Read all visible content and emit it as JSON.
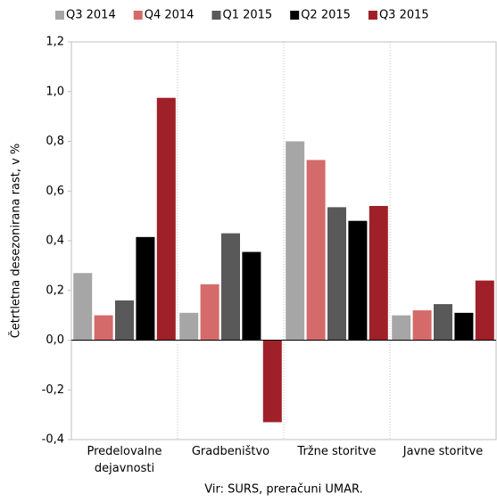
{
  "chart_data": {
    "type": "bar",
    "y_label": "Četrtletna desezonirana rast, v %",
    "source": "Vir: SURS, preračuni UMAR.",
    "categories": [
      "Predelovalne dejavnosti",
      "Gradbeništvo",
      "Tržne storitve",
      "Javne storitve"
    ],
    "series": [
      {
        "name": "Q3 2014",
        "color": "#a6a6a6",
        "values": [
          0.27,
          0.11,
          0.8,
          0.1
        ]
      },
      {
        "name": "Q4 2014",
        "color": "#d46a6a",
        "values": [
          0.1,
          0.225,
          0.725,
          0.12
        ]
      },
      {
        "name": "Q1 2015",
        "color": "#595959",
        "values": [
          0.16,
          0.43,
          0.535,
          0.145
        ]
      },
      {
        "name": "Q2 2015",
        "color": "#000000",
        "values": [
          0.415,
          0.355,
          0.48,
          0.11
        ]
      },
      {
        "name": "Q3 2015",
        "color": "#a0202a",
        "values": [
          0.975,
          -0.33,
          0.54,
          0.24
        ]
      }
    ],
    "ylim": [
      -0.4,
      1.2
    ],
    "yticks": [
      {
        "value": -0.4,
        "label": "-0,4"
      },
      {
        "value": -0.2,
        "label": "-0,2"
      },
      {
        "value": 0,
        "label": "0,0"
      },
      {
        "value": 0.2,
        "label": "0,2"
      },
      {
        "value": 0.4,
        "label": "0,4"
      },
      {
        "value": 0.6,
        "label": "0,6"
      },
      {
        "value": 0.8,
        "label": "0,8"
      },
      {
        "value": 1.0,
        "label": "1,0"
      },
      {
        "value": 1.2,
        "label": "1,2"
      }
    ],
    "grid": false,
    "legend": "top"
  }
}
